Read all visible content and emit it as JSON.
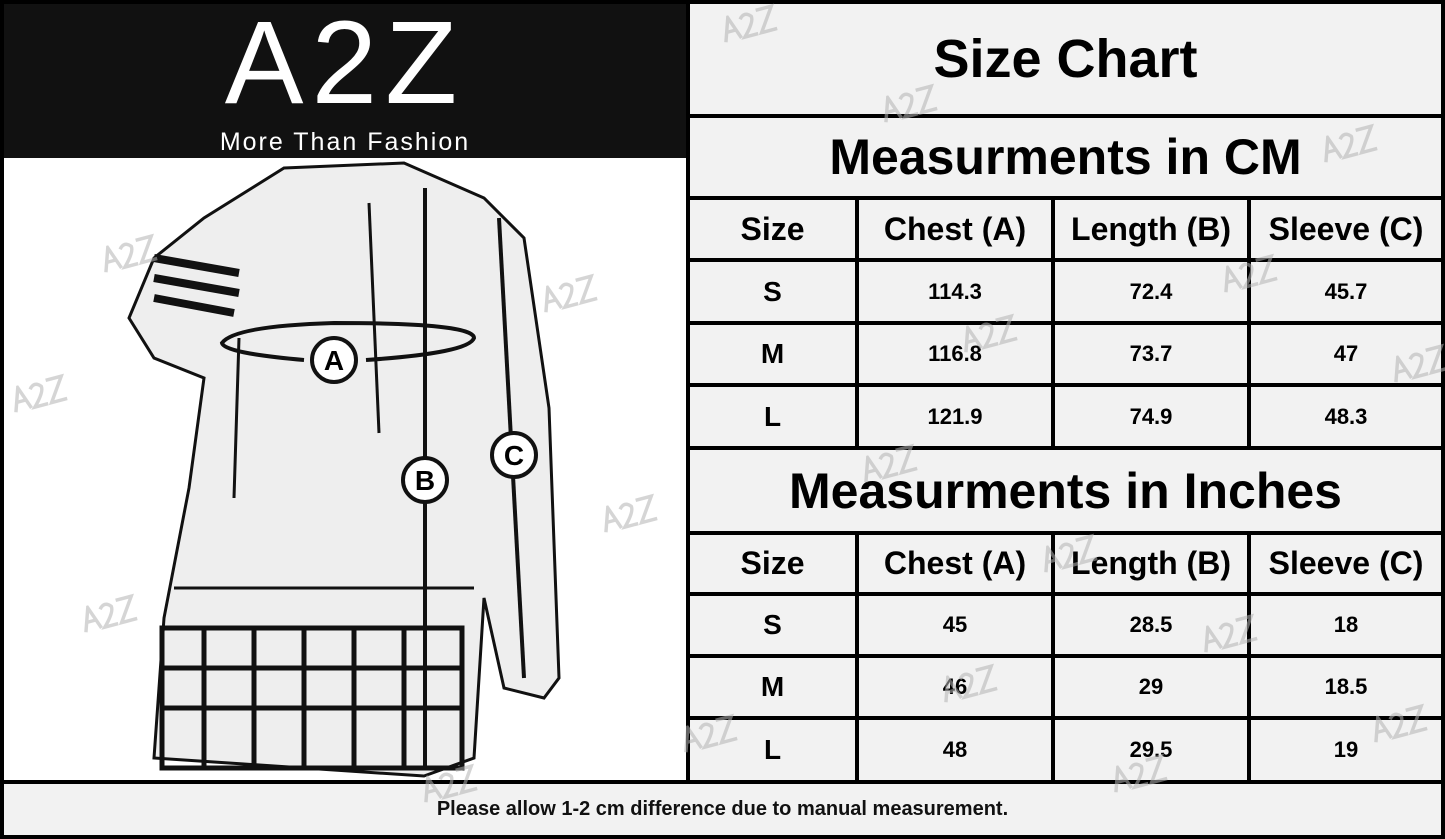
{
  "logo": {
    "text": "A2Z",
    "tagline": "More Than Fashion"
  },
  "diagram": {
    "markers": [
      "A",
      "B",
      "C"
    ]
  },
  "title": "Size Chart",
  "tables": [
    {
      "heading": "Measurments in CM",
      "columns": [
        "Size",
        "Chest (A)",
        "Length (B)",
        "Sleeve (C)"
      ],
      "rows": [
        [
          "S",
          "114.3",
          "72.4",
          "45.7"
        ],
        [
          "M",
          "116.8",
          "73.7",
          "47"
        ],
        [
          "L",
          "121.9",
          "74.9",
          "48.3"
        ]
      ]
    },
    {
      "heading": "Measurments in Inches",
      "columns": [
        "Size",
        "Chest (A)",
        "Length (B)",
        "Sleeve (C)"
      ],
      "rows": [
        [
          "S",
          "45",
          "28.5",
          "18"
        ],
        [
          "M",
          "46",
          "29",
          "18.5"
        ],
        [
          "L",
          "48",
          "29.5",
          "19"
        ]
      ]
    }
  ],
  "footer": "Please allow 1-2 cm difference due to manual measurement.",
  "watermark": "A2Z"
}
